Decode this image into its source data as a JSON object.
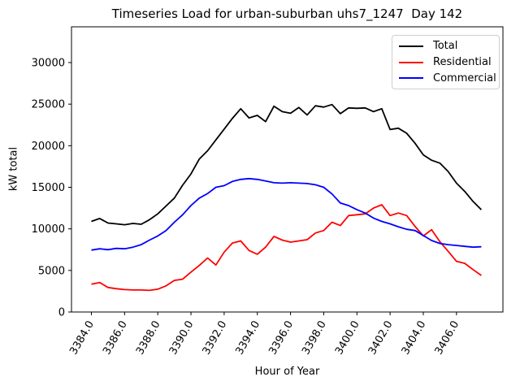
{
  "chart_data": {
    "type": "line",
    "title": "Timeseries Load for urban-suburban uhs7_1247  Day 142",
    "xlabel": "Hour of Year",
    "ylabel": "kW total",
    "grid": false,
    "legend_position": "upper right",
    "xlim": [
      3382.8,
      3408.8
    ],
    "ylim": [
      0,
      34300
    ],
    "xticks": [
      3384,
      3386,
      3388,
      3390,
      3392,
      3394,
      3396,
      3398,
      3400,
      3402,
      3404,
      3406
    ],
    "yticks": [
      0,
      5000,
      10000,
      15000,
      20000,
      25000,
      30000
    ],
    "x": [
      3384,
      3384.5,
      3385,
      3385.5,
      3386,
      3386.5,
      3387,
      3387.5,
      3388,
      3388.5,
      3389,
      3389.5,
      3390,
      3390.5,
      3391,
      3391.5,
      3392,
      3392.5,
      3393,
      3393.5,
      3394,
      3394.5,
      3395,
      3395.5,
      3396,
      3396.5,
      3397,
      3397.5,
      3398,
      3398.5,
      3399,
      3399.5,
      3400,
      3400.5,
      3401,
      3401.5,
      3402,
      3402.5,
      3403,
      3403.5,
      3404,
      3404.5,
      3405,
      3405.5,
      3406,
      3406.5,
      3407,
      3407.5
    ],
    "series": [
      {
        "name": "Total",
        "color": "#000000",
        "values": [
          10900,
          11250,
          10700,
          10600,
          10500,
          10650,
          10550,
          11100,
          11800,
          12750,
          13700,
          15250,
          16600,
          18400,
          19400,
          20700,
          22000,
          23300,
          24450,
          23350,
          23650,
          22900,
          24750,
          24100,
          23900,
          24600,
          23700,
          24800,
          24650,
          24950,
          23850,
          24550,
          24500,
          24550,
          24100,
          24450,
          21950,
          22100,
          21500,
          20300,
          18900,
          18250,
          17900,
          16900,
          15500,
          14500,
          13300,
          12300
        ]
      },
      {
        "name": "Residential",
        "color": "#ff0000",
        "values": [
          3350,
          3550,
          2950,
          2800,
          2700,
          2650,
          2650,
          2600,
          2750,
          3150,
          3800,
          3950,
          4800,
          5600,
          6500,
          5650,
          7200,
          8300,
          8550,
          7400,
          6950,
          7800,
          9100,
          8650,
          8400,
          8550,
          8700,
          9500,
          9800,
          10800,
          10400,
          11600,
          11700,
          11800,
          12500,
          12900,
          11600,
          11900,
          11600,
          10300,
          9150,
          9900,
          8450,
          7300,
          6100,
          5850,
          5100,
          4400
        ]
      },
      {
        "name": "Commercial",
        "color": "#0000ff",
        "values": [
          7450,
          7600,
          7500,
          7650,
          7600,
          7800,
          8100,
          8650,
          9150,
          9800,
          10800,
          11700,
          12800,
          13700,
          14250,
          15000,
          15200,
          15700,
          15950,
          16050,
          15950,
          15750,
          15550,
          15500,
          15550,
          15500,
          15450,
          15300,
          15000,
          14200,
          13100,
          12800,
          12300,
          11900,
          11300,
          10900,
          10600,
          10250,
          9950,
          9800,
          9200,
          8600,
          8250,
          8100,
          8000,
          7900,
          7800,
          7850
        ]
      }
    ]
  }
}
